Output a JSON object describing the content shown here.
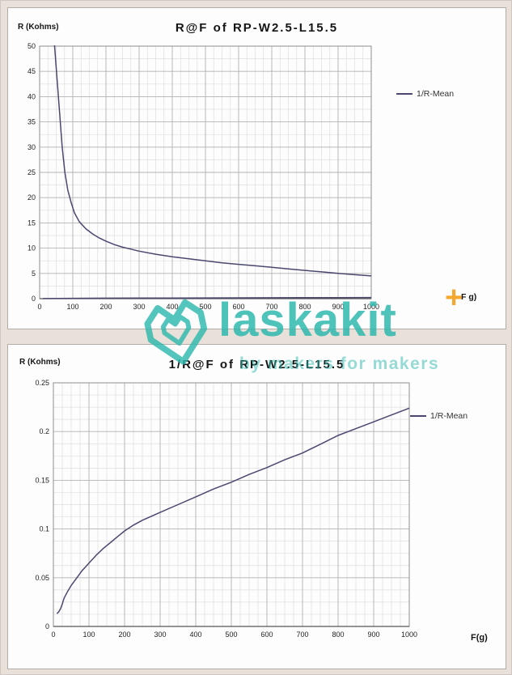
{
  "watermark": {
    "brand": "laskakit",
    "plus": "+",
    "tagline": "by makers for makers",
    "color": "#2fb9ae",
    "plus_color": "#f4a11d"
  },
  "chart_data": [
    {
      "type": "line",
      "title": "R@F of RP-W2.5-L15.5",
      "ylabel": "R (Kohms)",
      "xlabel": "F g)",
      "legend": [
        "1/R-Mean"
      ],
      "legend_position": "right",
      "grid": {
        "x_minor": 25,
        "x_major": 100,
        "y_minor": 2.5,
        "y_major": 5
      },
      "xlim": [
        0,
        1000
      ],
      "ylim": [
        0,
        50
      ],
      "xticks": [
        0,
        100,
        200,
        300,
        400,
        500,
        600,
        700,
        800,
        900,
        1000
      ],
      "xtick_labels": [
        "0",
        "100",
        "200",
        "300",
        "400",
        "500",
        "600",
        "700",
        "800",
        "900",
        "1000"
      ],
      "yticks": [
        0,
        5,
        10,
        15,
        20,
        25,
        30,
        35,
        40,
        45,
        50
      ],
      "ytick_labels": [
        "0",
        "5",
        "10",
        "15",
        "20",
        "25",
        "30",
        "35",
        "40",
        "45",
        "50"
      ],
      "series": [
        {
          "name": "R-Mean",
          "color": "#4a4870",
          "x": [
            30,
            38,
            45,
            52,
            60,
            68,
            76,
            85,
            95,
            105,
            120,
            140,
            160,
            180,
            200,
            225,
            250,
            275,
            300,
            350,
            400,
            450,
            500,
            550,
            600,
            650,
            700,
            750,
            800,
            850,
            900,
            950,
            1000
          ],
          "y": [
            62,
            55,
            50,
            44,
            37,
            30,
            25,
            21.5,
            19,
            17,
            15.2,
            13.8,
            12.8,
            12,
            11.4,
            10.7,
            10.2,
            9.8,
            9.4,
            8.8,
            8.3,
            7.9,
            7.5,
            7.1,
            6.8,
            6.5,
            6.2,
            5.9,
            5.6,
            5.3,
            5,
            4.75,
            4.5
          ]
        },
        {
          "name": "1/R-Mean",
          "color": "#4a4870",
          "x": [
            10,
            100,
            200,
            300,
            400,
            500,
            600,
            700,
            800,
            900,
            1000
          ],
          "y": [
            0.013,
            0.065,
            0.098,
            0.117,
            0.133,
            0.148,
            0.163,
            0.178,
            0.196,
            0.21,
            0.224
          ]
        }
      ]
    },
    {
      "type": "line",
      "title": "1/R@F of RP-W2.5-L15.5",
      "ylabel": "R (Kohms)",
      "xlabel": "F(g)",
      "legend": [
        "1/R-Mean"
      ],
      "legend_position": "right",
      "grid": {
        "x_minor": 25,
        "x_major": 100,
        "y_minor": 0.0125,
        "y_major": 0.05
      },
      "xlim": [
        0,
        1000
      ],
      "ylim": [
        0,
        0.25
      ],
      "xticks": [
        0,
        100,
        200,
        300,
        400,
        500,
        600,
        700,
        800,
        900,
        1000
      ],
      "xtick_labels": [
        "0",
        "100",
        "200",
        "300",
        "400",
        "500",
        "600",
        "700",
        "800",
        "900",
        "1000"
      ],
      "yticks": [
        0,
        0.05,
        0.1,
        0.15,
        0.2,
        0.25
      ],
      "ytick_labels": [
        "0",
        "0.05",
        "0.1",
        "0.15",
        "0.2",
        "0.25"
      ],
      "series": [
        {
          "name": "1/R-Mean",
          "color": "#4a4870",
          "x": [
            10,
            15,
            20,
            25,
            30,
            40,
            50,
            60,
            70,
            80,
            90,
            100,
            120,
            140,
            160,
            180,
            200,
            225,
            250,
            275,
            300,
            350,
            400,
            450,
            500,
            550,
            600,
            650,
            700,
            750,
            800,
            850,
            900,
            950,
            1000
          ],
          "y": [
            0.013,
            0.015,
            0.018,
            0.023,
            0.029,
            0.036,
            0.042,
            0.047,
            0.052,
            0.057,
            0.061,
            0.065,
            0.073,
            0.08,
            0.086,
            0.092,
            0.098,
            0.104,
            0.109,
            0.113,
            0.117,
            0.125,
            0.133,
            0.141,
            0.148,
            0.156,
            0.163,
            0.171,
            0.178,
            0.187,
            0.196,
            0.203,
            0.21,
            0.217,
            0.224
          ]
        }
      ]
    }
  ]
}
